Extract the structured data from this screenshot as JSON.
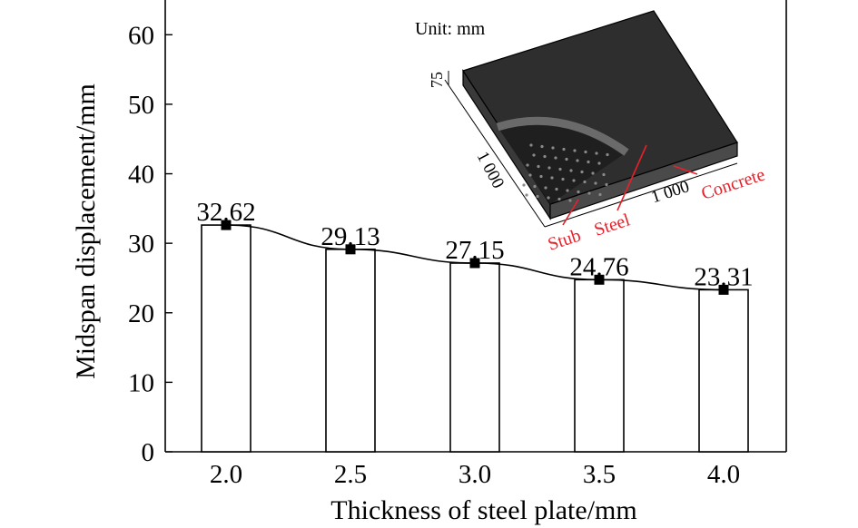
{
  "chart_data": {
    "type": "bar",
    "xlabel": "Thickness of steel plate/mm",
    "ylabel": "Midspan displacement/mm",
    "categories": [
      "2.0",
      "2.5",
      "3.0",
      "3.5",
      "4.0"
    ],
    "values": [
      32.62,
      29.13,
      27.15,
      24.76,
      23.31
    ],
    "data_labels": [
      "32.62",
      "29.13",
      "27.15",
      "24.76",
      "23.31"
    ],
    "overlay_line": {
      "type": "line",
      "marker": "square",
      "values": [
        32.62,
        29.13,
        27.15,
        24.76,
        23.31
      ]
    },
    "ylim": [
      0,
      65
    ],
    "yticks": [
      "0",
      "10",
      "20",
      "30",
      "40",
      "50",
      "60"
    ],
    "grid": false
  },
  "inset": {
    "unit_label": "Unit: mm",
    "thickness_label": "75",
    "side_label": "1 000",
    "front_label": "1 000",
    "callouts": [
      "Stub",
      "Steel",
      "Concrete"
    ],
    "callout_color": "#e8202a",
    "slab_color": "#2e2e2e"
  }
}
